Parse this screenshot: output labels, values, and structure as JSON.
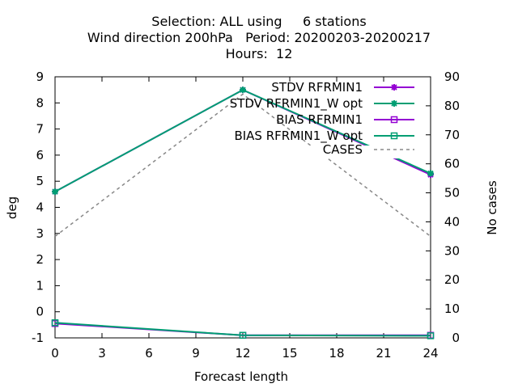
{
  "title": {
    "line1": "Selection: ALL using     6 stations",
    "line2": "Wind direction 200hPa   Period: 20200203-20200217",
    "line3": "Hours:  12"
  },
  "chart_data": {
    "type": "line",
    "xlabel": "Forecast length",
    "ylabel": "deg",
    "y2label": "No cases",
    "x": [
      0,
      12,
      24
    ],
    "xticks": [
      0,
      3,
      6,
      9,
      12,
      15,
      18,
      21,
      24
    ],
    "ylim": [
      -1,
      9
    ],
    "yticks": [
      -1,
      0,
      1,
      2,
      3,
      4,
      5,
      6,
      7,
      8,
      9
    ],
    "y2lim": [
      0,
      90
    ],
    "y2ticks": [
      0,
      10,
      20,
      30,
      40,
      50,
      60,
      70,
      80,
      90
    ],
    "legend_position": "top-right",
    "series": [
      {
        "name": "STDV RFRMIN1",
        "values": [
          4.6,
          8.5,
          5.25
        ],
        "color": "#9400d3",
        "marker": "star",
        "axis": "y"
      },
      {
        "name": "STDV RFRMIN1_W opt",
        "values": [
          4.6,
          8.5,
          5.3
        ],
        "color": "#009e73",
        "marker": "star",
        "axis": "y"
      },
      {
        "name": "BIAS RFRMIN1",
        "values": [
          -0.45,
          -0.9,
          -0.9
        ],
        "color": "#9400d3",
        "marker": "square",
        "axis": "y"
      },
      {
        "name": "BIAS RFRMIN1_W opt",
        "values": [
          -0.42,
          -0.9,
          -0.92
        ],
        "color": "#009e73",
        "marker": "square",
        "axis": "y"
      },
      {
        "name": "CASES",
        "values": [
          35,
          84,
          35
        ],
        "color": "#888888",
        "marker": "none",
        "dash": true,
        "axis": "y2"
      }
    ]
  }
}
